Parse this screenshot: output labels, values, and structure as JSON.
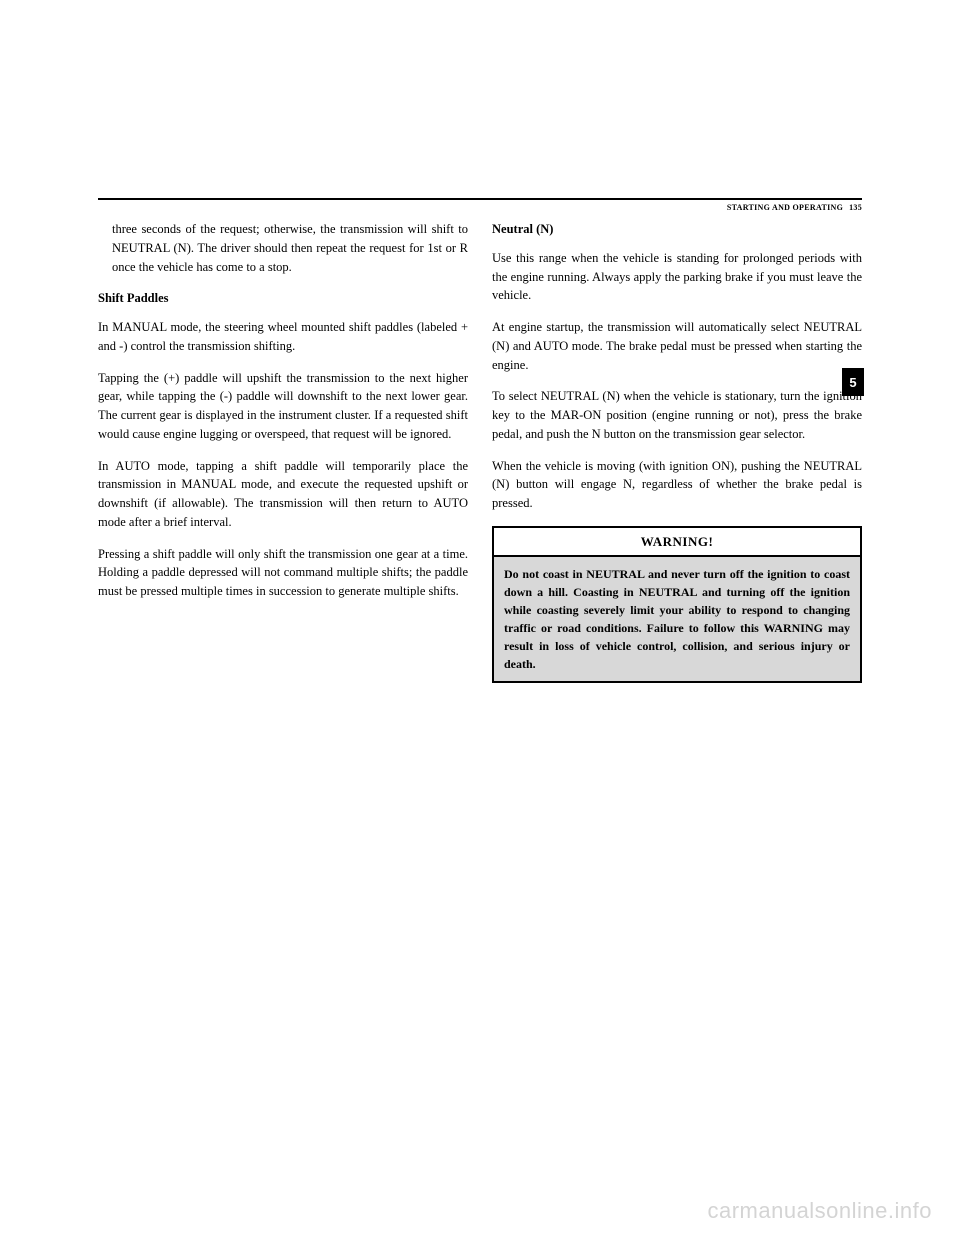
{
  "header": {
    "section_title": "STARTING AND OPERATING",
    "page_number": "135"
  },
  "section_tab": "5",
  "left_column": {
    "para1": "three seconds of the request; otherwise, the transmission will shift to NEUTRAL (N). The driver should then repeat the request for 1st or R once the vehicle has come to a stop.",
    "heading1": "Shift Paddles",
    "para2": "In MANUAL mode, the steering wheel mounted shift paddles (labeled + and -) control the transmission shifting.",
    "para3": "Tapping the (+) paddle will upshift the transmission to the next higher gear, while tapping the (-) paddle will downshift to the next lower gear. The current gear is displayed in the instrument cluster. If a requested shift would cause engine lugging or overspeed, that request will be ignored.",
    "para4": "In AUTO mode, tapping a shift paddle will temporarily place the transmission in MANUAL mode, and execute the requested upshift or downshift (if allowable). The transmission will then return to AUTO mode after a brief interval.",
    "para5": "Pressing a shift paddle will only shift the transmission one gear at a time. Holding a paddle depressed will not command multiple shifts; the paddle must be pressed multiple times in succession to generate multiple shifts."
  },
  "right_column": {
    "heading1": "Neutral (N)",
    "para1": "Use this range when the vehicle is standing for prolonged periods with the engine running. Always apply the parking brake if you must leave the vehicle.",
    "para2": "At engine startup, the transmission will automatically select NEUTRAL (N) and AUTO mode. The brake pedal must be pressed when starting the engine.",
    "para3": "To select NEUTRAL (N) when the vehicle is stationary, turn the ignition key to the MAR-ON position (engine running or not), press the brake pedal, and push the N button on the transmission gear selector.",
    "para4": "When the vehicle is moving (with ignition ON), pushing the NEUTRAL (N) button will engage N, regardless of whether the brake pedal is pressed.",
    "warning_title": "WARNING!",
    "warning_body": "Do not coast in NEUTRAL and never turn off the ignition to coast down a hill. Coasting in NEUTRAL and turning off the ignition while coasting severely limit your ability to respond to changing traffic or road conditions. Failure to follow this WARNING may result in loss of vehicle control, collision, and serious injury or death."
  },
  "watermark": "carmanualsonline.info"
}
